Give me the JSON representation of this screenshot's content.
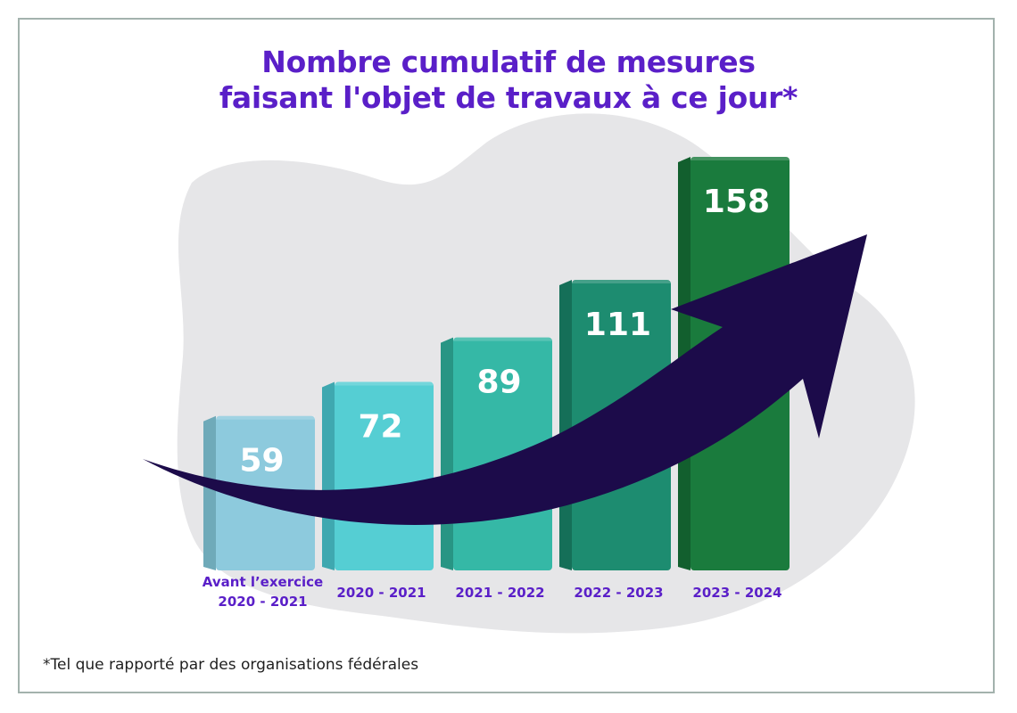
{
  "chart_data": {
    "type": "bar",
    "title": "Nombre cumulatif de mesures faisant l'objet de travaux à ce jour*",
    "title_lines": [
      "Nombre cumulatif de mesures",
      "faisant l'objet de travaux à ce jour*"
    ],
    "categories": [
      [
        "Avant l’exercice",
        "2020 - 2021"
      ],
      [
        "2020 - 2021"
      ],
      [
        "2021 - 2022"
      ],
      [
        "2022 - 2023"
      ],
      [
        "2023 - 2024"
      ]
    ],
    "values": [
      59,
      72,
      89,
      111,
      158
    ],
    "value_labels": [
      "59",
      "72",
      "89",
      "111",
      "158"
    ],
    "xlabel": "",
    "ylabel": "",
    "grid": false,
    "legend": "none",
    "trend_arrow": true,
    "colors": {
      "bars": [
        "#8dcadd",
        "#55ced3",
        "#35b8a6",
        "#1d8c70",
        "#1a7b3d"
      ],
      "bar_sides": [
        "#6faab9",
        "#3fa8b0",
        "#289584",
        "#156f58",
        "#125f2e"
      ],
      "arrow": "#1c0b4a",
      "title": "#5a1fc8",
      "category_labels": "#5a1fc8",
      "blob": "#e6e6e8"
    }
  },
  "footnote": "*Tel que rapporté par des organisations fédérales"
}
